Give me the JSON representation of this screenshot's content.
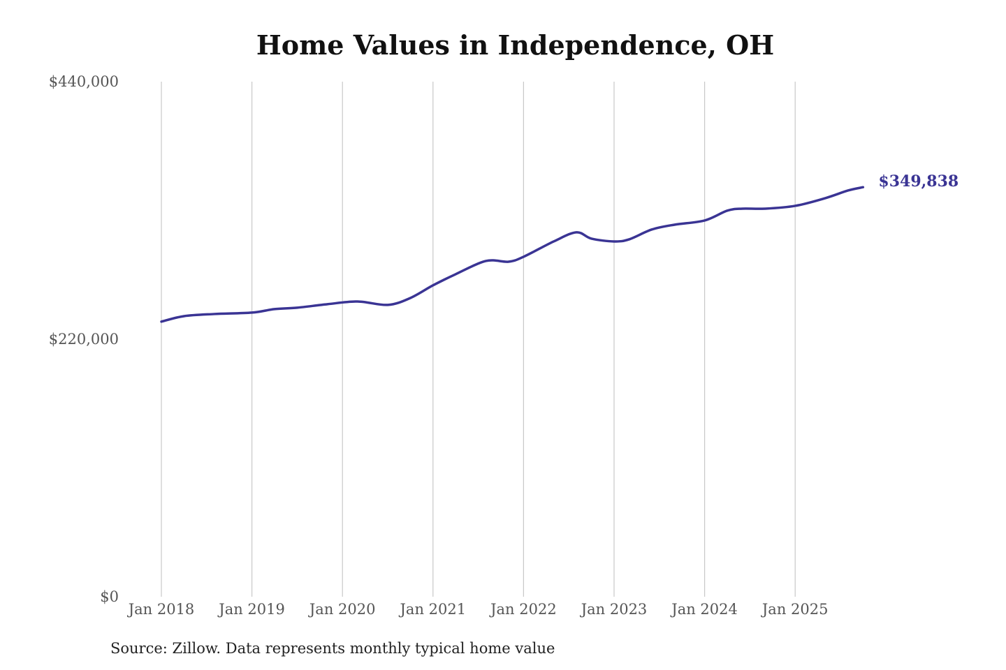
{
  "chart_data": {
    "type": "line",
    "title": "Home Values in Independence, OH",
    "xlabel": "",
    "ylabel": "",
    "ylim": [
      0,
      440000
    ],
    "y_ticks": [
      0,
      220000,
      440000
    ],
    "y_tick_labels": [
      "$0",
      "$220,000",
      "$440,000"
    ],
    "x_ticks": [
      "2018-01",
      "2019-01",
      "2020-01",
      "2021-01",
      "2022-01",
      "2023-01",
      "2024-01",
      "2025-01"
    ],
    "x_tick_labels": [
      "Jan 2018",
      "Jan 2019",
      "Jan 2020",
      "Jan 2021",
      "Jan 2022",
      "Jan 2023",
      "Jan 2024",
      "Jan 2025"
    ],
    "grid": "vertical",
    "line_color": "#3a3494",
    "end_label": "$349,838",
    "x": [
      "2018-01",
      "2018-04",
      "2018-08",
      "2019-01",
      "2019-04",
      "2019-07",
      "2019-11",
      "2020-03",
      "2020-07",
      "2020-10",
      "2021-01",
      "2021-04",
      "2021-08",
      "2021-11",
      "2022-01",
      "2022-05",
      "2022-08",
      "2022-10",
      "2023-01",
      "2023-03",
      "2023-06",
      "2023-09",
      "2024-01",
      "2024-04",
      "2024-06",
      "2024-09",
      "2025-01",
      "2025-05",
      "2025-08",
      "2025-10"
    ],
    "values": [
      235000,
      239700,
      241500,
      242700,
      245700,
      246900,
      249900,
      252200,
      249300,
      255200,
      266000,
      275500,
      286800,
      286200,
      290400,
      303500,
      311300,
      305900,
      303500,
      305300,
      313700,
      317800,
      321400,
      329800,
      331500,
      331500,
      333900,
      340500,
      347000,
      349838
    ]
  },
  "source": "Source: Zillow. Data represents monthly typical home value"
}
